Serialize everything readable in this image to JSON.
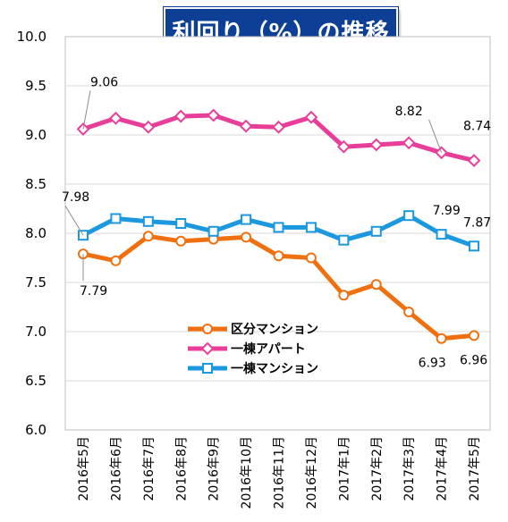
{
  "chart_data": {
    "type": "line",
    "title": "利回り（%）の推移",
    "categories": [
      "2016年5月",
      "2016年6月",
      "2016年7月",
      "2016年8月",
      "2016年9月",
      "2016年10月",
      "2016年11月",
      "2016年12月",
      "2017年1月",
      "2017年2月",
      "2017年3月",
      "2017年4月",
      "2017年5月"
    ],
    "ylim": [
      6.0,
      10.0
    ],
    "yticks": [
      "6.0",
      "6.5",
      "7.0",
      "7.5",
      "8.0",
      "8.5",
      "9.0",
      "9.5",
      "10.0"
    ],
    "grid": true,
    "legend_position": "center-left",
    "series": [
      {
        "name": "区分マンション",
        "color": "#f07010",
        "marker": "circle",
        "values": [
          7.79,
          7.72,
          7.97,
          7.92,
          7.94,
          7.96,
          7.77,
          7.75,
          7.37,
          7.48,
          7.2,
          6.93,
          6.96
        ]
      },
      {
        "name": "一棟アパート",
        "color": "#e83e9a",
        "marker": "diamond",
        "values": [
          9.06,
          9.17,
          9.08,
          9.19,
          9.2,
          9.09,
          9.08,
          9.18,
          8.88,
          8.9,
          8.92,
          8.82,
          8.74
        ]
      },
      {
        "name": "一棟マンション",
        "color": "#1b98e0",
        "marker": "square",
        "values": [
          7.98,
          8.15,
          8.12,
          8.1,
          8.02,
          8.14,
          8.06,
          8.06,
          7.93,
          8.02,
          8.18,
          7.99,
          7.87
        ]
      }
    ],
    "data_labels": [
      {
        "series": 1,
        "index": 0,
        "text": "9.06"
      },
      {
        "series": 1,
        "index": 11,
        "text": "8.82"
      },
      {
        "series": 1,
        "index": 12,
        "text": "8.74"
      },
      {
        "series": 2,
        "index": 0,
        "text": "7.98"
      },
      {
        "series": 2,
        "index": 11,
        "text": "7.99"
      },
      {
        "series": 2,
        "index": 12,
        "text": "7.87"
      },
      {
        "series": 0,
        "index": 0,
        "text": "7.79"
      },
      {
        "series": 0,
        "index": 11,
        "text": "6.93"
      },
      {
        "series": 0,
        "index": 12,
        "text": "6.96"
      }
    ]
  }
}
